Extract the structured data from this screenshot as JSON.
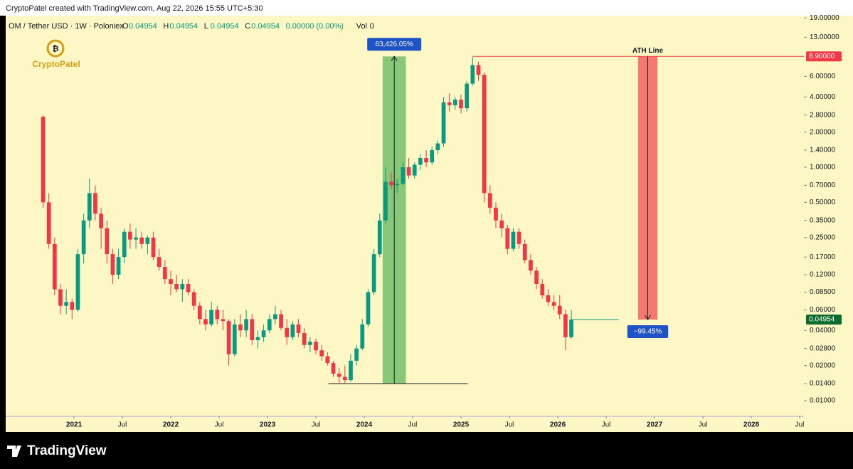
{
  "header": {
    "credit": "CryptoPatel created with TradingView.com, Aug 22, 2026 15:55 UTC+5:30",
    "footer": "TradingView"
  },
  "chart_data": {
    "type": "candlestick",
    "symbol": "OM / Tether USD · 1W · Poloniex",
    "ohlc": [
      {
        "key": "O",
        "value": "0.04954"
      },
      {
        "key": "H",
        "value": "0.04954"
      },
      {
        "key": "L",
        "value": "0.04954"
      },
      {
        "key": "C",
        "value": "0.04954"
      }
    ],
    "change": "0.00000 (0.00%)",
    "volume_label": "Vol",
    "volume": "0",
    "watermark": "CryptoPatel",
    "up_color": "#089981",
    "down_color": "#f23645",
    "log_scale": true,
    "xlim": [
      2020.294,
      2028.544
    ],
    "xticks": [
      2021,
      {
        "value": 2021.5,
        "label": "Jul"
      },
      2022,
      {
        "value": 2022.5,
        "label": "Jul"
      },
      2023,
      {
        "value": 2023.5,
        "label": "Jul"
      },
      2024,
      {
        "value": 2024.5,
        "label": "Jul"
      },
      2025,
      {
        "value": 2025.5,
        "label": "Jul"
      },
      2026,
      {
        "value": 2026.5,
        "label": "Jul"
      },
      2027,
      {
        "value": 2027.5,
        "label": "Jul"
      },
      2028,
      {
        "value": 2028.5,
        "label": "Jul"
      }
    ],
    "ylim": [
      0.00734,
      19.9
    ],
    "yticks": [
      {
        "value": 19,
        "label": "19.00000"
      },
      {
        "value": 13,
        "label": "13.00000"
      },
      {
        "value": 6,
        "label": "6.00000"
      },
      {
        "value": 4,
        "label": "4.00000"
      },
      {
        "value": 2.8,
        "label": "2.80000"
      },
      {
        "value": 2,
        "label": "2.00000"
      },
      {
        "value": 1.4,
        "label": "1.40000"
      },
      {
        "value": 1,
        "label": "1.00000"
      },
      {
        "value": 0.7,
        "label": "0.70000"
      },
      {
        "value": 0.5,
        "label": "0.50000"
      },
      {
        "value": 0.35,
        "label": "0.35000"
      },
      {
        "value": 0.25,
        "label": "0.25000"
      },
      {
        "value": 0.17,
        "label": "0.17000"
      },
      {
        "value": 0.12,
        "label": "0.12000"
      },
      {
        "value": 0.085,
        "label": "0.08500"
      },
      {
        "value": 0.06,
        "label": "0.06000"
      },
      {
        "value": 0.04,
        "label": "0.04000"
      },
      {
        "value": 0.028,
        "label": "0.02800"
      },
      {
        "value": 0.02,
        "label": "0.02000"
      },
      {
        "value": 0.014,
        "label": "0.01400"
      },
      {
        "value": 0.01,
        "label": "0.01000"
      }
    ],
    "x": [
      2020.68,
      2020.74,
      2020.8,
      2020.86,
      2020.92,
      2020.98,
      2021.04,
      2021.1,
      2021.16,
      2021.22,
      2021.28,
      2021.34,
      2021.4,
      2021.46,
      2021.52,
      2021.58,
      2021.64,
      2021.7,
      2021.76,
      2021.82,
      2021.88,
      2021.94,
      2022.0,
      2022.06,
      2022.12,
      2022.18,
      2022.24,
      2022.3,
      2022.36,
      2022.42,
      2022.48,
      2022.54,
      2022.6,
      2022.66,
      2022.72,
      2022.78,
      2022.84,
      2022.9,
      2022.96,
      2023.02,
      2023.08,
      2023.14,
      2023.2,
      2023.26,
      2023.32,
      2023.38,
      2023.44,
      2023.5,
      2023.56,
      2023.62,
      2023.68,
      2023.74,
      2023.8,
      2023.86,
      2023.92,
      2023.98,
      2024.04,
      2024.1,
      2024.16,
      2024.22,
      2024.28,
      2024.34,
      2024.4,
      2024.46,
      2024.52,
      2024.58,
      2024.64,
      2024.7,
      2024.76,
      2024.82,
      2024.88,
      2024.94,
      2025.0,
      2025.06,
      2025.12,
      2025.18,
      2025.24,
      2025.3,
      2025.36,
      2025.42,
      2025.48,
      2025.54,
      2025.6,
      2025.66,
      2025.72,
      2025.78,
      2025.84,
      2025.9,
      2025.96,
      2026.02,
      2026.08,
      2026.14
    ],
    "open": [
      2.7,
      0.5,
      0.22,
      0.09,
      0.065,
      0.07,
      0.06,
      0.18,
      0.35,
      0.6,
      0.4,
      0.3,
      0.18,
      0.12,
      0.17,
      0.28,
      0.24,
      0.25,
      0.22,
      0.25,
      0.17,
      0.14,
      0.11,
      0.1,
      0.09,
      0.1,
      0.085,
      0.065,
      0.05,
      0.045,
      0.06,
      0.05,
      0.048,
      0.025,
      0.045,
      0.04,
      0.05,
      0.033,
      0.035,
      0.04,
      0.05,
      0.055,
      0.042,
      0.035,
      0.045,
      0.038,
      0.03,
      0.032,
      0.027,
      0.024,
      0.021,
      0.017,
      0.016,
      0.015,
      0.022,
      0.028,
      0.045,
      0.085,
      0.18,
      0.35,
      0.75,
      0.7,
      0.72,
      1.0,
      0.85,
      1.05,
      1.2,
      1.1,
      1.4,
      1.6,
      3.6,
      3.4,
      3.8,
      3.2,
      5.2,
      7.5,
      6.2,
      0.6,
      0.45,
      0.35,
      0.3,
      0.2,
      0.28,
      0.22,
      0.16,
      0.13,
      0.1,
      0.08,
      0.07,
      0.065,
      0.055,
      0.035
    ],
    "high": [
      2.79,
      0.6,
      0.25,
      0.1,
      0.09,
      0.075,
      0.2,
      0.4,
      0.8,
      0.7,
      0.45,
      0.35,
      0.2,
      0.2,
      0.3,
      0.33,
      0.3,
      0.28,
      0.26,
      0.28,
      0.2,
      0.16,
      0.13,
      0.12,
      0.11,
      0.11,
      0.09,
      0.07,
      0.06,
      0.07,
      0.065,
      0.06,
      0.05,
      0.05,
      0.055,
      0.06,
      0.055,
      0.04,
      0.045,
      0.055,
      0.065,
      0.06,
      0.05,
      0.048,
      0.05,
      0.042,
      0.035,
      0.034,
      0.03,
      0.026,
      0.022,
      0.019,
      0.02,
      0.025,
      0.03,
      0.05,
      0.09,
      0.2,
      0.4,
      1.0,
      0.9,
      0.8,
      1.1,
      1.2,
      1.1,
      1.3,
      1.4,
      1.5,
      1.7,
      4.0,
      4.3,
      4.0,
      4.2,
      5.5,
      8.9,
      8.0,
      6.5,
      0.7,
      0.5,
      0.4,
      0.32,
      0.3,
      0.3,
      0.24,
      0.18,
      0.14,
      0.11,
      0.09,
      0.08,
      0.08,
      0.06,
      0.06
    ],
    "low": [
      0.45,
      0.2,
      0.08,
      0.055,
      0.055,
      0.05,
      0.058,
      0.15,
      0.3,
      0.35,
      0.2,
      0.15,
      0.1,
      0.11,
      0.15,
      0.2,
      0.2,
      0.2,
      0.18,
      0.16,
      0.13,
      0.1,
      0.08,
      0.085,
      0.07,
      0.08,
      0.06,
      0.045,
      0.04,
      0.043,
      0.045,
      0.04,
      0.02,
      0.024,
      0.035,
      0.035,
      0.03,
      0.028,
      0.032,
      0.038,
      0.045,
      0.04,
      0.03,
      0.033,
      0.035,
      0.028,
      0.026,
      0.025,
      0.022,
      0.02,
      0.016,
      0.014,
      0.014,
      0.0145,
      0.02,
      0.027,
      0.043,
      0.08,
      0.17,
      0.33,
      0.65,
      0.6,
      0.7,
      0.8,
      0.8,
      0.95,
      1.0,
      1.05,
      1.3,
      1.5,
      3.0,
      3.1,
      2.9,
      3.0,
      5.0,
      5.5,
      0.5,
      0.4,
      0.3,
      0.25,
      0.18,
      0.19,
      0.2,
      0.15,
      0.12,
      0.09,
      0.075,
      0.065,
      0.06,
      0.05,
      0.027,
      0.034
    ],
    "close": [
      0.5,
      0.22,
      0.09,
      0.065,
      0.07,
      0.06,
      0.18,
      0.35,
      0.6,
      0.4,
      0.3,
      0.18,
      0.12,
      0.17,
      0.28,
      0.24,
      0.25,
      0.22,
      0.25,
      0.17,
      0.14,
      0.11,
      0.1,
      0.09,
      0.1,
      0.085,
      0.065,
      0.05,
      0.045,
      0.06,
      0.05,
      0.048,
      0.025,
      0.045,
      0.04,
      0.05,
      0.033,
      0.035,
      0.04,
      0.05,
      0.055,
      0.042,
      0.035,
      0.045,
      0.038,
      0.03,
      0.032,
      0.027,
      0.024,
      0.021,
      0.017,
      0.016,
      0.015,
      0.022,
      0.028,
      0.045,
      0.085,
      0.18,
      0.35,
      0.75,
      0.7,
      0.72,
      1.0,
      0.85,
      1.05,
      1.2,
      1.1,
      1.4,
      1.6,
      3.6,
      3.4,
      3.8,
      3.2,
      5.2,
      7.5,
      6.2,
      0.6,
      0.45,
      0.35,
      0.3,
      0.2,
      0.28,
      0.22,
      0.16,
      0.13,
      0.1,
      0.08,
      0.07,
      0.065,
      0.055,
      0.035,
      0.04954
    ],
    "price_tags": [
      {
        "value": 8.9,
        "label": "8.90000",
        "color": "#f23645"
      },
      {
        "value": 0.04954,
        "label": "0.04954",
        "color": "#0b6b2e"
      }
    ],
    "ath_line": {
      "label": "ATH Line",
      "value": 8.9,
      "x": 2025.125,
      "color": "#f23645"
    },
    "baseline": {
      "value": 0.014,
      "x": [
        2023.63,
        2025.07
      ]
    },
    "last_price_line": {
      "value": 0.04954,
      "x": [
        2026.15,
        2026.63
      ],
      "color": "#089981"
    },
    "annotations": [
      {
        "label": "63,426.05%",
        "from": 0.014,
        "to": 8.9,
        "x": [
          2024.19,
          2024.43
        ],
        "color": "#4caf50"
      },
      {
        "label": "−99.45%",
        "from": 8.9,
        "to": 0.04954,
        "x": [
          2026.83,
          2027.03
        ],
        "color": "#f23645"
      }
    ]
  }
}
